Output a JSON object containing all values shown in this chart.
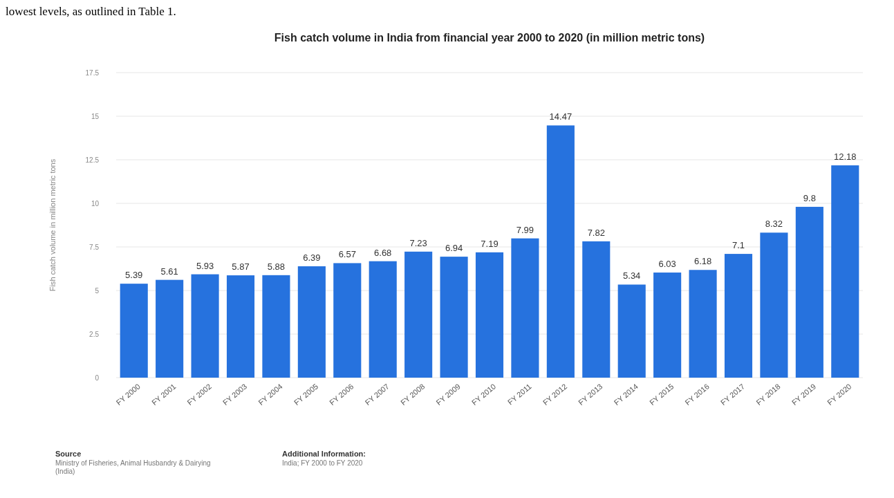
{
  "chart_data": {
    "type": "bar",
    "title": "Fish catch volume in India from financial year 2000 to 2020 (in million metric tons)",
    "ylabel": "Fish catch volume in million metric tons",
    "categories": [
      "FY 2000",
      "FY 2001",
      "FY 2002",
      "FY 2003",
      "FY 2004",
      "FY 2005",
      "FY 2006",
      "FY 2007",
      "FY 2008",
      "FY 2009",
      "FY 2010",
      "FY 2011",
      "FY 2012",
      "FY 2013",
      "FY 2014",
      "FY 2015",
      "FY 2016",
      "FY 2017",
      "FY 2018",
      "FY 2019",
      "FY 2020"
    ],
    "values": [
      5.39,
      5.61,
      5.93,
      5.87,
      5.88,
      6.39,
      6.57,
      6.68,
      7.23,
      6.94,
      7.19,
      7.99,
      14.47,
      7.82,
      5.34,
      6.03,
      6.18,
      7.1,
      8.32,
      9.8,
      12.18
    ],
    "color": "#2672de",
    "ylim": [
      0,
      17.5
    ],
    "yticks": [
      0,
      2.5,
      5,
      7.5,
      10,
      12.5,
      15,
      17.5
    ],
    "grid": "y",
    "data_labels": true,
    "annotations": [
      "lowest levels, as outlined in Table 1.",
      "Source",
      "Ministry of Fisheries, Animal Husbandry & Dairying (India)",
      "Additional Information:",
      "India; FY 2000 to FY 2020"
    ]
  }
}
